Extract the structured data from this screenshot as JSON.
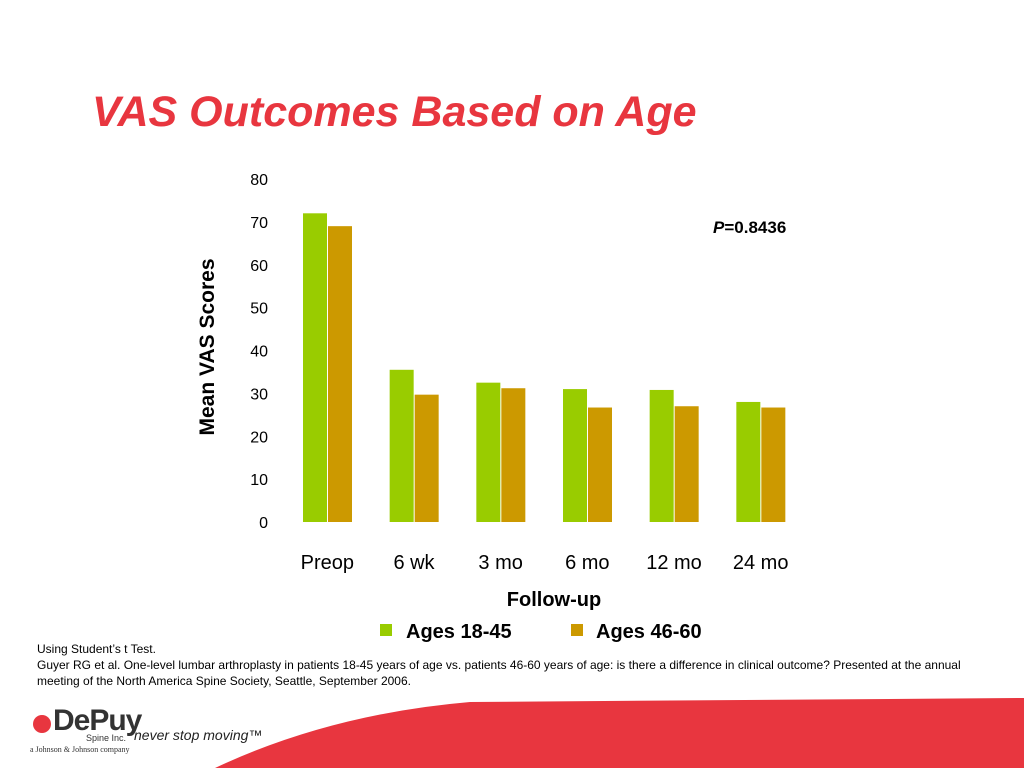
{
  "slide": {
    "title": "VAS Outcomes Based on Age"
  },
  "chart_data": {
    "type": "bar",
    "categories": [
      "Preop",
      "6 wk",
      "3 mo",
      "6 mo",
      "12 mo",
      "24 mo"
    ],
    "series": [
      {
        "name": "Ages 18-45",
        "color": "#99cc00",
        "values": [
          72,
          35.5,
          32.5,
          31,
          30.8,
          28
        ]
      },
      {
        "name": "Ages 46-60",
        "color": "#cc9900",
        "values": [
          69,
          29.7,
          31.2,
          26.7,
          27,
          26.7
        ]
      }
    ],
    "xlabel": "Follow-up",
    "ylabel": "Mean VAS Scores",
    "ylim": [
      0,
      80
    ],
    "yticks": [
      0,
      10,
      20,
      30,
      40,
      50,
      60,
      70,
      80
    ],
    "grid": false,
    "legend": "bottom",
    "annotation": {
      "p_label": "P",
      "p_value": "=0.8436"
    }
  },
  "footnote": {
    "line1": "Using Student’s t Test.",
    "line2": "Guyer RG et al.  One-level lumbar arthroplasty in patients 18-45 years of age vs. patients 46-60 years of age: is there a difference in clinical outcome? Presented at the annual meeting of the North America Spine Society, Seattle, September 2006."
  },
  "footer": {
    "logo_text": "DePuy",
    "logo_sub": "Spine Inc.",
    "parent_company": "a Johnson & Johnson company",
    "tagline": "never stop moving™",
    "band_color": "#e8363f"
  }
}
